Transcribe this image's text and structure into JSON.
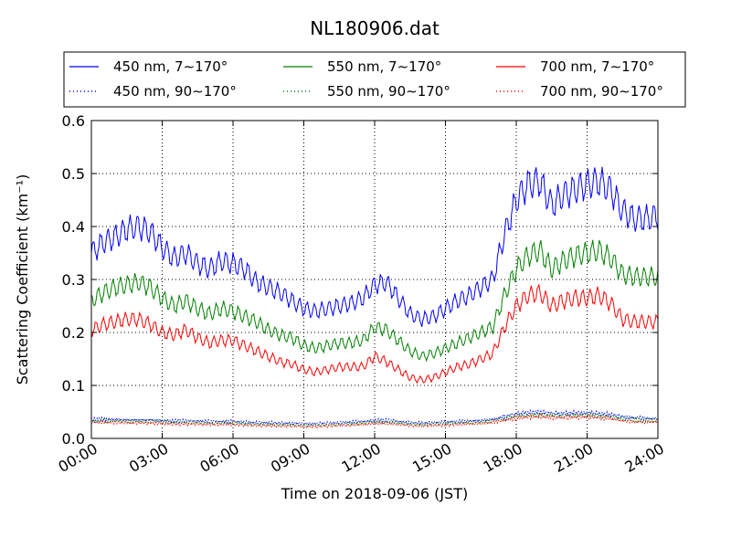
{
  "chart_data": {
    "type": "line",
    "title": "NL180906.dat",
    "xlabel": "Time on 2018-09-06 (JST)",
    "ylabel": "Scattering Coefficient (km⁻¹)",
    "xticks": [
      "00:00",
      "03:00",
      "06:00",
      "09:00",
      "12:00",
      "15:00",
      "18:00",
      "21:00",
      "24:00"
    ],
    "yticks": [
      "0.0",
      "0.1",
      "0.2",
      "0.3",
      "0.4",
      "0.5",
      "0.6"
    ],
    "xlim_hours": [
      0,
      24
    ],
    "ylim": [
      0,
      0.6
    ],
    "grid": true,
    "legend_placement": "top, above plot",
    "x_hours": [
      0,
      0.5,
      1,
      1.5,
      2,
      2.5,
      3,
      3.5,
      4,
      4.5,
      5,
      5.5,
      6,
      6.5,
      7,
      7.5,
      8,
      8.5,
      9,
      9.5,
      10,
      10.5,
      11,
      11.5,
      12,
      12.5,
      13,
      13.5,
      14,
      14.5,
      15,
      15.5,
      16,
      16.5,
      17,
      17.5,
      18,
      18.5,
      19,
      19.5,
      20,
      20.5,
      21,
      21.5,
      22,
      22.5,
      23,
      23.5,
      24
    ],
    "series": [
      {
        "name": "450 nm, 7∼170°",
        "color": "#0000ff",
        "style": "solid",
        "values": [
          0.35,
          0.37,
          0.38,
          0.395,
          0.4,
          0.39,
          0.36,
          0.34,
          0.35,
          0.33,
          0.32,
          0.335,
          0.33,
          0.32,
          0.295,
          0.285,
          0.275,
          0.26,
          0.245,
          0.24,
          0.245,
          0.25,
          0.255,
          0.265,
          0.29,
          0.295,
          0.265,
          0.235,
          0.225,
          0.23,
          0.245,
          0.26,
          0.27,
          0.285,
          0.3,
          0.385,
          0.45,
          0.48,
          0.485,
          0.44,
          0.46,
          0.47,
          0.48,
          0.485,
          0.47,
          0.43,
          0.415,
          0.415,
          0.42
        ]
      },
      {
        "name": "450 nm, 90∼170°",
        "color": "#0000ff",
        "style": "dotted",
        "values": [
          0.036,
          0.036,
          0.036,
          0.035,
          0.035,
          0.035,
          0.034,
          0.033,
          0.033,
          0.033,
          0.032,
          0.032,
          0.032,
          0.031,
          0.03,
          0.03,
          0.029,
          0.029,
          0.028,
          0.028,
          0.029,
          0.03,
          0.031,
          0.032,
          0.034,
          0.034,
          0.032,
          0.03,
          0.029,
          0.03,
          0.031,
          0.032,
          0.033,
          0.034,
          0.036,
          0.041,
          0.046,
          0.049,
          0.05,
          0.047,
          0.047,
          0.048,
          0.048,
          0.047,
          0.045,
          0.041,
          0.039,
          0.038,
          0.037
        ]
      },
      {
        "name": "550 nm, 7∼170°",
        "color": "#008000",
        "style": "solid",
        "values": [
          0.26,
          0.275,
          0.285,
          0.29,
          0.295,
          0.285,
          0.265,
          0.25,
          0.26,
          0.245,
          0.235,
          0.245,
          0.24,
          0.23,
          0.22,
          0.205,
          0.195,
          0.19,
          0.175,
          0.17,
          0.175,
          0.18,
          0.18,
          0.185,
          0.21,
          0.205,
          0.185,
          0.165,
          0.155,
          0.16,
          0.17,
          0.18,
          0.19,
          0.2,
          0.21,
          0.27,
          0.32,
          0.345,
          0.355,
          0.32,
          0.335,
          0.345,
          0.35,
          0.355,
          0.34,
          0.31,
          0.305,
          0.305,
          0.305
        ]
      },
      {
        "name": "550 nm, 90∼170°",
        "color": "#008000",
        "style": "dotted",
        "values": [
          0.033,
          0.033,
          0.033,
          0.032,
          0.032,
          0.032,
          0.031,
          0.03,
          0.03,
          0.03,
          0.029,
          0.029,
          0.029,
          0.028,
          0.027,
          0.027,
          0.026,
          0.026,
          0.025,
          0.025,
          0.026,
          0.027,
          0.028,
          0.029,
          0.031,
          0.031,
          0.029,
          0.027,
          0.026,
          0.027,
          0.028,
          0.029,
          0.03,
          0.031,
          0.033,
          0.037,
          0.042,
          0.044,
          0.045,
          0.043,
          0.043,
          0.044,
          0.044,
          0.043,
          0.041,
          0.037,
          0.035,
          0.034,
          0.034
        ]
      },
      {
        "name": "700 nm, 7∼170°",
        "color": "#ff0000",
        "style": "solid",
        "values": [
          0.205,
          0.215,
          0.22,
          0.225,
          0.225,
          0.215,
          0.2,
          0.195,
          0.205,
          0.19,
          0.18,
          0.185,
          0.185,
          0.175,
          0.165,
          0.155,
          0.145,
          0.14,
          0.13,
          0.125,
          0.13,
          0.135,
          0.135,
          0.135,
          0.155,
          0.145,
          0.13,
          0.115,
          0.11,
          0.115,
          0.125,
          0.135,
          0.14,
          0.15,
          0.16,
          0.21,
          0.25,
          0.27,
          0.275,
          0.25,
          0.26,
          0.265,
          0.265,
          0.27,
          0.255,
          0.225,
          0.22,
          0.22,
          0.22
        ]
      },
      {
        "name": "700 nm, 90∼170°",
        "color": "#ff0000",
        "style": "dotted",
        "values": [
          0.03,
          0.03,
          0.03,
          0.029,
          0.029,
          0.029,
          0.028,
          0.027,
          0.027,
          0.027,
          0.026,
          0.026,
          0.026,
          0.025,
          0.024,
          0.024,
          0.023,
          0.023,
          0.022,
          0.022,
          0.023,
          0.024,
          0.025,
          0.026,
          0.028,
          0.028,
          0.026,
          0.024,
          0.023,
          0.024,
          0.025,
          0.026,
          0.027,
          0.028,
          0.03,
          0.034,
          0.038,
          0.04,
          0.041,
          0.039,
          0.039,
          0.04,
          0.04,
          0.039,
          0.037,
          0.033,
          0.031,
          0.031,
          0.031
        ]
      }
    ]
  }
}
